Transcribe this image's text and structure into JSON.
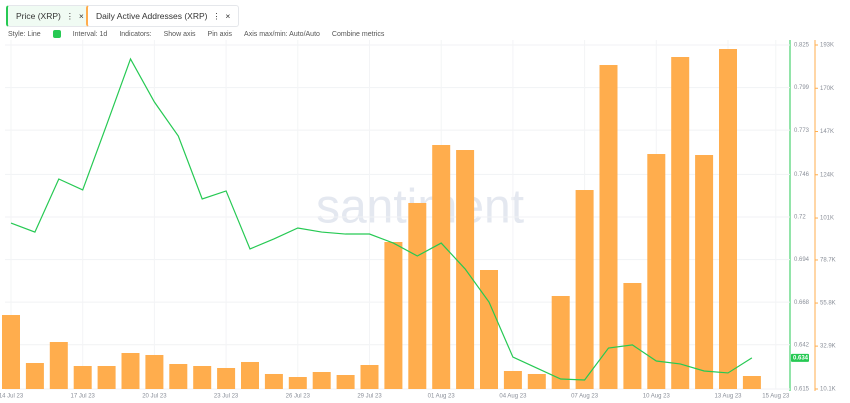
{
  "tabs": [
    "Price (XRP)",
    "Daily Active Addresses (XRP)"
  ],
  "toolbar": {
    "style": "Style: Line",
    "interval": "Interval: 1d",
    "indicators": "Indicators:",
    "show_axis": "Show axis",
    "pin_axis": "Pin axis",
    "axis_maxmin": "Axis max/min: Auto/Auto",
    "combine": "Combine metrics"
  },
  "watermark": "santiment",
  "chart_data": {
    "type": "bar-line",
    "categories": [
      "14 Jul 23",
      null,
      null,
      "17 Jul 23",
      null,
      null,
      "20 Jul 23",
      null,
      null,
      "23 Jul 23",
      null,
      null,
      "26 Jul 23",
      null,
      null,
      "29 Jul 23",
      null,
      null,
      "01 Aug 23",
      null,
      null,
      "04 Aug 23",
      null,
      null,
      "07 Aug 23",
      null,
      null,
      "10 Aug 23",
      null,
      null,
      "13 Aug 23",
      null,
      "15 Aug 23"
    ],
    "series": [
      {
        "name": "Price (XRP)",
        "type": "line",
        "color": "#26c953",
        "axis": "y",
        "values": [
          0.7163,
          0.7108,
          0.7432,
          0.7365,
          0.7762,
          0.8165,
          0.7902,
          0.7694,
          0.731,
          0.7359,
          0.7005,
          0.7066,
          0.7133,
          0.7108,
          0.7096,
          0.7096,
          0.7041,
          0.6962,
          0.7041,
          0.6883,
          0.6681,
          0.6345,
          0.6278,
          0.6211,
          0.6205,
          0.64,
          0.6419,
          0.6321,
          0.6303,
          0.626,
          0.6248,
          0.634,
          null
        ],
        "value_labels": [
          null,
          null,
          null,
          null,
          null,
          null,
          null,
          null,
          null,
          null,
          null,
          null,
          null,
          null,
          null,
          null,
          null,
          null,
          null,
          null,
          null,
          null,
          null,
          null,
          null,
          null,
          null,
          null,
          null,
          null,
          null,
          "0.634",
          null
        ]
      },
      {
        "name": "Daily Active Addresses (XRP)",
        "type": "bar",
        "color": "#ffad4d",
        "axis": "y2",
        "values": [
          49440,
          23920,
          35090,
          22330,
          22330,
          29240,
          28180,
          23390,
          22330,
          21270,
          24460,
          18080,
          16480,
          19140,
          17540,
          22860,
          88260,
          109000,
          139830,
          137170,
          73370,
          19670,
          18080,
          59550,
          115900,
          182360,
          66460,
          135040,
          186620,
          134510,
          190870,
          17010,
          null
        ]
      }
    ],
    "ylim": [
      0.615,
      0.825
    ],
    "yticks": [
      0.615,
      0.642,
      0.668,
      0.694,
      0.72,
      0.746,
      0.773,
      0.799,
      0.825
    ],
    "y2lim": [
      10100,
      193000
    ],
    "y2ticks": [
      {
        "value": 10100,
        "label": "10.1K"
      },
      {
        "value": 32900,
        "label": "32.9K"
      },
      {
        "value": 55800,
        "label": "55.8K"
      },
      {
        "value": 78700,
        "label": "78.7K"
      },
      {
        "value": 101000,
        "label": "101K"
      },
      {
        "value": 124000,
        "label": "124K"
      },
      {
        "value": 147000,
        "label": "147K"
      },
      {
        "value": 170000,
        "label": "170K"
      },
      {
        "value": 193000,
        "label": "193K"
      }
    ],
    "grid": true
  }
}
